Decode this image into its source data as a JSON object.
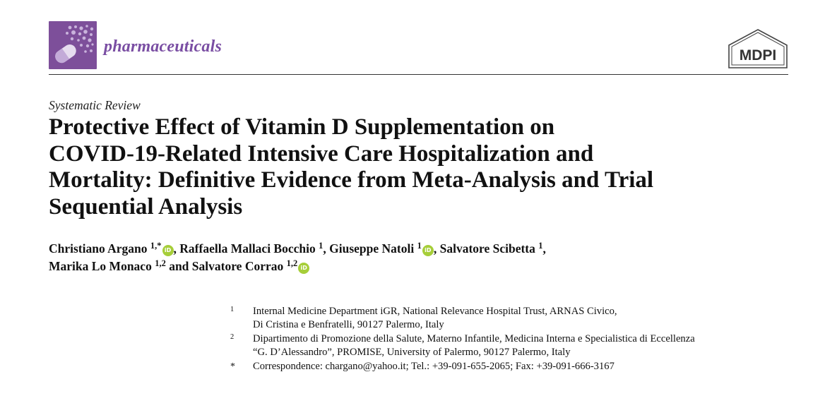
{
  "header": {
    "journal": "pharmaceuticals",
    "publisher": "MDPI"
  },
  "article": {
    "type": "Systematic Review",
    "title_lines": [
      "Protective Effect of Vitamin D Supplementation on",
      "COVID-19-Related Intensive Care Hospitalization and",
      "Mortality: Definitive Evidence from Meta-Analysis and Trial",
      "Sequential Analysis"
    ]
  },
  "authors": [
    {
      "name": "Christiano Argano",
      "sup": "1,*",
      "orcid": true
    },
    {
      "name": "Raffaella Mallaci Bocchio",
      "sup": "1",
      "orcid": false
    },
    {
      "name": "Giuseppe Natoli",
      "sup": "1",
      "orcid": true
    },
    {
      "name": "Salvatore Scibetta",
      "sup": "1",
      "orcid": false
    },
    {
      "name": "Marika Lo Monaco",
      "sup": "1,2",
      "orcid": false
    },
    {
      "name": "Salvatore Corrao",
      "sup": "1,2",
      "orcid": true
    }
  ],
  "author_separators": [
    ", ",
    ", ",
    ", ",
    ",",
    " and "
  ],
  "orcid_label": "iD",
  "affiliations": [
    {
      "mark": "1",
      "lines": [
        "Internal Medicine Department iGR, National Relevance Hospital Trust, ARNAS Civico,",
        "Di Cristina e Benfratelli, 90127 Palermo, Italy"
      ]
    },
    {
      "mark": "2",
      "lines": [
        "Dipartimento di Promozione della Salute, Materno Infantile, Medicina Interna e Specialistica di Eccellenza",
        "“G. D’Alessandro”, PROMISE, University of Palermo, 90127 Palermo, Italy"
      ]
    },
    {
      "mark": "*",
      "lines": [
        "Correspondence: chargano@yahoo.it; Tel.: +39-091-655-2065; Fax: +39-091-666-3167"
      ]
    }
  ],
  "colors": {
    "journal_purple": "#7a4ea3",
    "logo_background": "#7d4f9a",
    "orcid_green": "#a6ce39"
  }
}
